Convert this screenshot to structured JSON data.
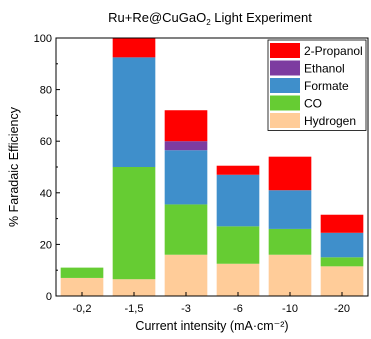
{
  "chart_data": {
    "type": "bar",
    "stacked": true,
    "title": {
      "prefix": "Ru+Re@CuGaO",
      "subscript": "2",
      "suffix": " Light Experiment"
    },
    "xlabel": "Current intensity (mA·cm⁻²)",
    "ylabel": "% Faradaic Efficiency",
    "categories": [
      "-0,2",
      "-1,5",
      "-3",
      "-6",
      "-10",
      "-20"
    ],
    "ylim": [
      0,
      100
    ],
    "yticks": [
      0,
      20,
      40,
      60,
      80,
      100
    ],
    "grid": false,
    "legend_position": "top-right",
    "series": [
      {
        "name": "Hydrogen",
        "color": "#FFCC99",
        "values": [
          7,
          6.5,
          16,
          12.5,
          16,
          11.5
        ]
      },
      {
        "name": "CO",
        "color": "#66CC33",
        "values": [
          4,
          43.5,
          19.5,
          14.5,
          10,
          3.5
        ]
      },
      {
        "name": "Formate",
        "color": "#3F8FCB",
        "values": [
          0,
          42.5,
          21,
          20,
          15,
          9.5
        ]
      },
      {
        "name": "Ethanol",
        "color": "#7D3CA0",
        "values": [
          0,
          0,
          3.5,
          0,
          0,
          0
        ]
      },
      {
        "name": "2-Propanol",
        "color": "#FF0000",
        "values": [
          0,
          7.5,
          12,
          3.5,
          13,
          7
        ]
      }
    ],
    "legend_order": [
      "2-Propanol",
      "Ethanol",
      "Formate",
      "CO",
      "Hydrogen"
    ]
  }
}
